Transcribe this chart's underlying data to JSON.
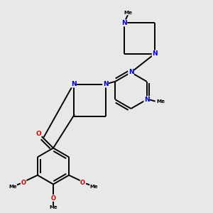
{
  "background_color": "#e8e8e8",
  "bond_color": "#000000",
  "n_color": "#0000cc",
  "o_color": "#cc0000",
  "line_width": 1.4,
  "dbo": 0.12,
  "figsize": [
    3.0,
    3.0
  ],
  "dpi": 100,
  "xlim": [
    0,
    10
  ],
  "ylim": [
    0,
    10
  ]
}
